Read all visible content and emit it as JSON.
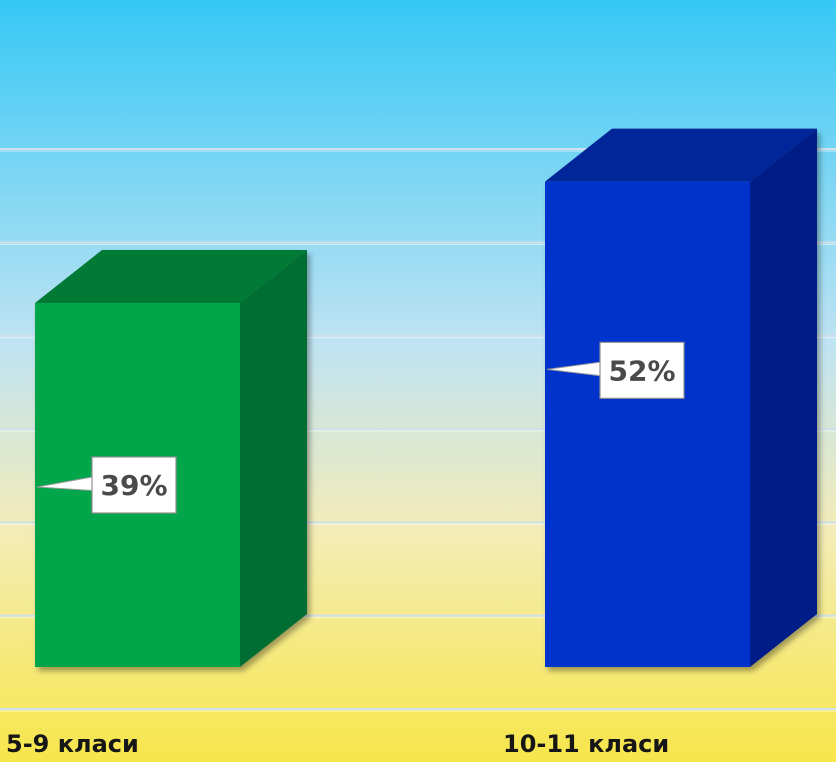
{
  "chart_data": {
    "type": "bar",
    "categories": [
      "5-9 класи",
      "10-11 класи"
    ],
    "values": [
      39,
      52
    ],
    "data_labels": [
      "39%",
      "52%"
    ],
    "unit": "%",
    "ylim": [
      0,
      60
    ],
    "grid": true,
    "colors": {
      "bars": [
        "#00a64a",
        "#0033cc"
      ],
      "bar_tops": [
        "#027a36",
        "#002599"
      ],
      "bar_sides": [
        "#016d31",
        "#001f86"
      ],
      "gridline": "#cfe0ea",
      "background_top": "#36c8f5",
      "background_bottom": "#f7e64a"
    }
  }
}
